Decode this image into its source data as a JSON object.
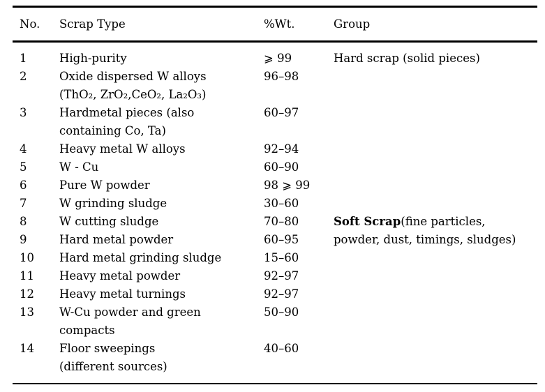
{
  "table": {
    "columns": {
      "no": "No.",
      "type": "Scrap Type",
      "wt": "%Wt.",
      "group": "Group"
    },
    "rows": [
      {
        "no": "1",
        "type": "High-purity",
        "wt": "⩾ 99",
        "group": "Hard scrap (solid pieces)"
      },
      {
        "no": "2",
        "type": "Oxide dispersed W alloys\n(ThO₂, ZrO₂,CeO₂, La₂O₃)",
        "wt": "96–98",
        "group": ""
      },
      {
        "no": "3",
        "type": "Hardmetal pieces (also\ncontaining Co, Ta)",
        "wt": "60–97",
        "group": ""
      },
      {
        "no": "4",
        "type": "Heavy metal W alloys",
        "wt": "92–94",
        "group": ""
      },
      {
        "no": "5",
        "type": "W - Cu",
        "wt": "60–90",
        "group": ""
      },
      {
        "no": "6",
        "type": "Pure W powder",
        "wt": "98 ⩾ 99",
        "group": ""
      },
      {
        "no": "7",
        "type": "W grinding sludge",
        "wt": "30–60",
        "group": ""
      },
      {
        "no": "8",
        "type": "W cutting sludge",
        "wt": "70–80",
        "group_bold": "Soft Scrap",
        "group": "(fine particles,"
      },
      {
        "no": "9",
        "type": "Hard metal powder",
        "wt": "60–95",
        "group": "powder, dust, timings, sludges)"
      },
      {
        "no": "10",
        "type": "Hard metal grinding sludge",
        "wt": "15–60",
        "group": ""
      },
      {
        "no": "11",
        "type": "Heavy metal powder",
        "wt": "92–97",
        "group": ""
      },
      {
        "no": "12",
        "type": "Heavy metal turnings",
        "wt": "92–97",
        "group": ""
      },
      {
        "no": "13",
        "type": "W-Cu powder and green\ncompacts",
        "wt": "50–90",
        "group": ""
      },
      {
        "no": "14",
        "type": "Floor sweepings\n(different sources)",
        "wt": "40–60",
        "group": ""
      }
    ]
  }
}
